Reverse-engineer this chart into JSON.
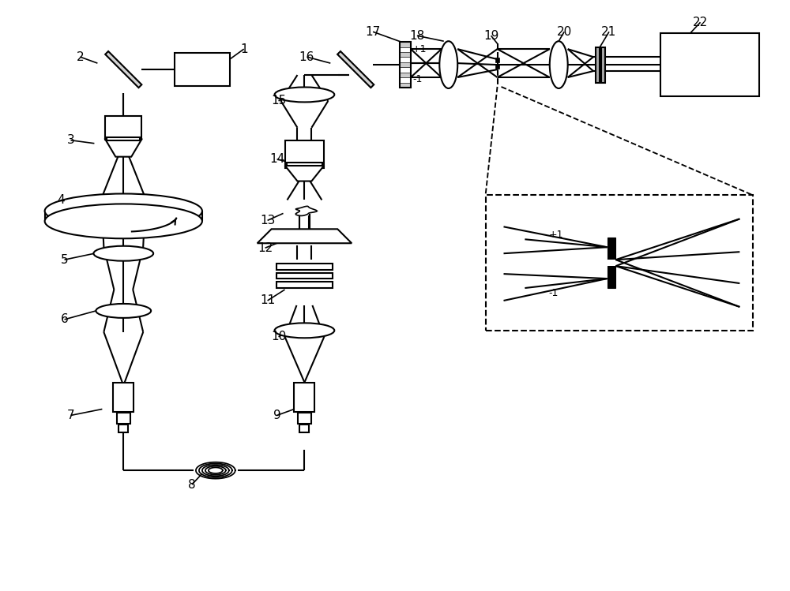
{
  "bg": "#ffffff",
  "lc": "#000000",
  "lw": 1.5,
  "fw": 10.0,
  "fh": 7.49,
  "dpi": 100,
  "xlim": [
    0,
    10
  ],
  "ylim": [
    0,
    7.49
  ]
}
